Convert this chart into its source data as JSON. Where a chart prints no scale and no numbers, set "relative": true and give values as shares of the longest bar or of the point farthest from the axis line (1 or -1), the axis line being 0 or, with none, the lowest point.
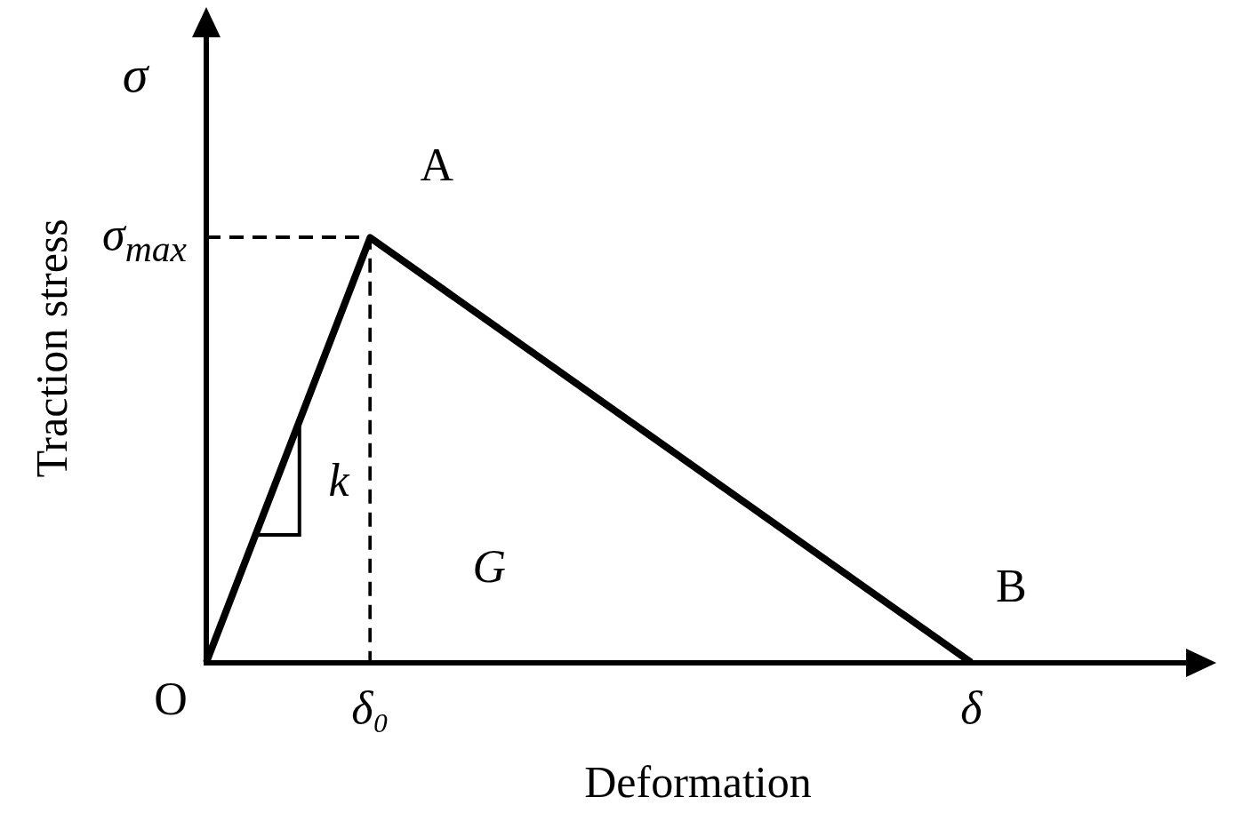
{
  "chart_data": {
    "type": "line",
    "relative": true,
    "xlabel": "Deformation",
    "ylabel": "Traction stress",
    "categories": [
      null,
      null,
      null,
      null,
      null,
      null,
      null,
      null,
      null,
      null,
      null,
      null,
      null,
      null,
      null,
      null,
      null,
      null,
      null
    ],
    "series": [
      {
        "color": "#000000",
        "values": [
          0,
          null,
          null,
          1,
          null,
          null,
          null,
          null,
          null,
          null,
          null,
          null,
          null,
          null,
          0,
          null,
          null,
          null,
          null
        ]
      }
    ],
    "annotations": [
      "A",
      "B",
      "O",
      "σ$_{max}$",
      "δ₀",
      "δ",
      "σ",
      "G",
      "k"
    ],
    "grid": false,
    "legend": false,
    "marker": "none"
  }
}
